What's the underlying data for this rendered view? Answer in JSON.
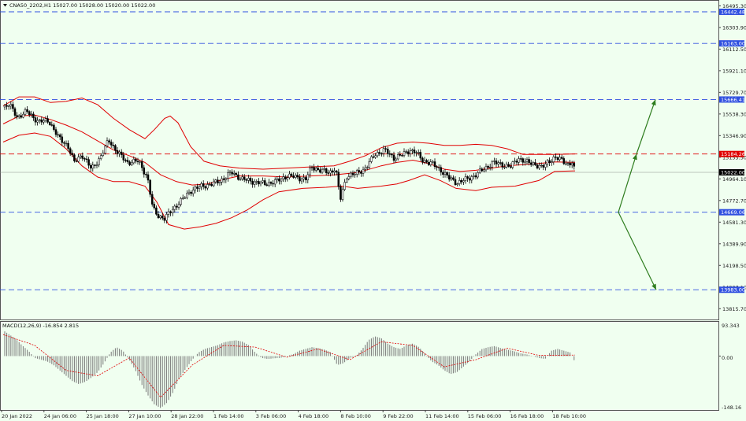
{
  "header": {
    "symbol_info": "CNA50_2202,H1  15027.00 15028.00 15020.00 15022.00"
  },
  "macd": {
    "label": "MACD(12,26,9) -16.854 2.815",
    "scale_labels": [
      "93.343",
      "0.00",
      "-148.16"
    ]
  },
  "colors": {
    "background": "#f0fff0",
    "candles": "#000000",
    "bollinger": "#e00000",
    "level_lines": "#3050e0",
    "arrows": "#2e7d1e",
    "current_price_tag": "#000000",
    "resistance_tag": "#e00000"
  },
  "chart_data": [
    {
      "type": "candlestick",
      "title": "",
      "ylim": [
        13720,
        16540
      ],
      "y_ticks": [
        "16495.30",
        "16303.90",
        "16112.50",
        "15921.10",
        "15729.70",
        "15538.30",
        "15346.90",
        "15155.50",
        "14964.10",
        "14772.70",
        "14581.30",
        "14389.90",
        "14198.50",
        "14007.10",
        "13815.70"
      ],
      "x_ticks": [
        "20 Jan 2022",
        "24 Jan 06:00",
        "25 Jan 18:00",
        "27 Jan 10:00",
        "28 Jan 22:00",
        "1 Feb 14:00",
        "3 Feb 06:00",
        "4 Feb 18:00",
        "8 Feb 10:00",
        "9 Feb 22:00",
        "11 Feb 14:00",
        "15 Feb 06:00",
        "16 Feb 18:00",
        "18 Feb 10:00"
      ],
      "indicators": [
        "Bollinger Bands"
      ],
      "close_path": [
        [
          0,
          15600
        ],
        [
          8,
          15620
        ],
        [
          18,
          15510
        ],
        [
          30,
          15560
        ],
        [
          45,
          15470
        ],
        [
          58,
          15480
        ],
        [
          70,
          15330
        ],
        [
          82,
          15260
        ],
        [
          90,
          15110
        ],
        [
          100,
          15180
        ],
        [
          112,
          15050
        ],
        [
          124,
          15160
        ],
        [
          134,
          15310
        ],
        [
          146,
          15190
        ],
        [
          158,
          15110
        ],
        [
          172,
          15120
        ],
        [
          183,
          14980
        ],
        [
          190,
          14700
        ],
        [
          197,
          14640
        ],
        [
          205,
          14610
        ],
        [
          214,
          14690
        ],
        [
          226,
          14770
        ],
        [
          238,
          14860
        ],
        [
          252,
          14900
        ],
        [
          266,
          14920
        ],
        [
          276,
          14950
        ],
        [
          290,
          15020
        ],
        [
          304,
          14960
        ],
        [
          318,
          14940
        ],
        [
          332,
          14920
        ],
        [
          346,
          14940
        ],
        [
          360,
          14990
        ],
        [
          372,
          14980
        ],
        [
          384,
          14960
        ],
        [
          392,
          15070
        ],
        [
          402,
          15040
        ],
        [
          414,
          15020
        ],
        [
          422,
          15060
        ],
        [
          428,
          14780
        ],
        [
          436,
          14990
        ],
        [
          448,
          15010
        ],
        [
          460,
          15060
        ],
        [
          472,
          15180
        ],
        [
          484,
          15220
        ],
        [
          496,
          15150
        ],
        [
          508,
          15180
        ],
        [
          516,
          15220
        ],
        [
          524,
          15200
        ],
        [
          532,
          15130
        ],
        [
          544,
          15100
        ],
        [
          556,
          15040
        ],
        [
          566,
          14970
        ],
        [
          576,
          14930
        ],
        [
          588,
          14960
        ],
        [
          600,
          15000
        ],
        [
          612,
          15060
        ],
        [
          622,
          15110
        ],
        [
          634,
          15090
        ],
        [
          644,
          15070
        ],
        [
          654,
          15150
        ],
        [
          664,
          15110
        ],
        [
          674,
          15100
        ],
        [
          684,
          15060
        ],
        [
          692,
          15120
        ],
        [
          700,
          15150
        ],
        [
          710,
          15130
        ],
        [
          718,
          15090
        ],
        [
          722,
          15110
        ],
        [
          726,
          15022
        ]
      ],
      "bollinger_upper": [
        [
          0,
          15610
        ],
        [
          20,
          15690
        ],
        [
          40,
          15690
        ],
        [
          60,
          15640
        ],
        [
          80,
          15650
        ],
        [
          100,
          15680
        ],
        [
          120,
          15620
        ],
        [
          140,
          15500
        ],
        [
          160,
          15400
        ],
        [
          180,
          15320
        ],
        [
          192,
          15400
        ],
        [
          205,
          15500
        ],
        [
          212,
          15520
        ],
        [
          222,
          15460
        ],
        [
          238,
          15250
        ],
        [
          255,
          15120
        ],
        [
          275,
          15080
        ],
        [
          300,
          15060
        ],
        [
          330,
          15050
        ],
        [
          360,
          15060
        ],
        [
          390,
          15070
        ],
        [
          420,
          15080
        ],
        [
          440,
          15120
        ],
        [
          460,
          15170
        ],
        [
          480,
          15240
        ],
        [
          500,
          15280
        ],
        [
          520,
          15290
        ],
        [
          540,
          15280
        ],
        [
          560,
          15260
        ],
        [
          580,
          15260
        ],
        [
          600,
          15270
        ],
        [
          620,
          15260
        ],
        [
          640,
          15230
        ],
        [
          660,
          15180
        ],
        [
          680,
          15180
        ],
        [
          700,
          15180
        ],
        [
          726,
          15185
        ]
      ],
      "bollinger_middle": [
        [
          0,
          15450
        ],
        [
          20,
          15520
        ],
        [
          40,
          15530
        ],
        [
          60,
          15490
        ],
        [
          80,
          15440
        ],
        [
          100,
          15380
        ],
        [
          120,
          15300
        ],
        [
          140,
          15220
        ],
        [
          160,
          15170
        ],
        [
          180,
          15110
        ],
        [
          200,
          15000
        ],
        [
          220,
          14940
        ],
        [
          240,
          14910
        ],
        [
          260,
          14920
        ],
        [
          280,
          14960
        ],
        [
          300,
          14990
        ],
        [
          330,
          14990
        ],
        [
          360,
          14980
        ],
        [
          390,
          14990
        ],
        [
          420,
          15000
        ],
        [
          450,
          15020
        ],
        [
          480,
          15080
        ],
        [
          500,
          15110
        ],
        [
          520,
          15130
        ],
        [
          540,
          15100
        ],
        [
          560,
          15050
        ],
        [
          580,
          15030
        ],
        [
          600,
          15040
        ],
        [
          620,
          15060
        ],
        [
          640,
          15080
        ],
        [
          660,
          15090
        ],
        [
          680,
          15100
        ],
        [
          700,
          15115
        ],
        [
          726,
          15110
        ]
      ],
      "bollinger_lower": [
        [
          0,
          15290
        ],
        [
          20,
          15350
        ],
        [
          40,
          15370
        ],
        [
          60,
          15340
        ],
        [
          80,
          15230
        ],
        [
          100,
          15080
        ],
        [
          120,
          14980
        ],
        [
          140,
          14940
        ],
        [
          160,
          14940
        ],
        [
          180,
          14900
        ],
        [
          195,
          14760
        ],
        [
          210,
          14560
        ],
        [
          230,
          14520
        ],
        [
          250,
          14540
        ],
        [
          270,
          14570
        ],
        [
          290,
          14620
        ],
        [
          310,
          14690
        ],
        [
          330,
          14780
        ],
        [
          350,
          14850
        ],
        [
          380,
          14880
        ],
        [
          410,
          14890
        ],
        [
          430,
          14900
        ],
        [
          450,
          14880
        ],
        [
          480,
          14900
        ],
        [
          500,
          14920
        ],
        [
          515,
          14950
        ],
        [
          535,
          15000
        ],
        [
          555,
          14950
        ],
        [
          575,
          14880
        ],
        [
          600,
          14860
        ],
        [
          620,
          14890
        ],
        [
          650,
          14900
        ],
        [
          680,
          14950
        ],
        [
          700,
          15030
        ],
        [
          726,
          15035
        ]
      ],
      "horizontal_levels": [
        {
          "value": 16442.48,
          "label": "16442.48",
          "color": "#3050e0",
          "style": "dashed"
        },
        {
          "value": 16163.0,
          "label": "16163.00",
          "color": "#3050e0",
          "style": "dashed"
        },
        {
          "value": 15666.41,
          "label": "15666.41",
          "color": "#3050e0",
          "style": "dashed"
        },
        {
          "value": 15184.26,
          "label": "15184.26",
          "color": "#e00000",
          "style": "dashed"
        },
        {
          "value": 15022.0,
          "label": "15022.00",
          "color": "#000000",
          "style": "solid-thin"
        },
        {
          "value": 14669.06,
          "label": "14669.06",
          "color": "#3050e0",
          "style": "dashed"
        },
        {
          "value": 13983.0,
          "label": "13983.00",
          "color": "#3050e0",
          "style": "dashed"
        }
      ],
      "scenario_arrows": [
        {
          "direction": "up",
          "points": [
            [
              785,
              14669
            ],
            [
              808,
              15184
            ],
            [
              832,
              15666
            ]
          ]
        },
        {
          "direction": "down",
          "points": [
            [
              785,
              14669
            ],
            [
              833,
              13983
            ]
          ]
        }
      ]
    },
    {
      "type": "macd_histogram",
      "title": "",
      "ylim": [
        -148.16,
        93.343
      ],
      "series_bars": [
        [
          0,
          72
        ],
        [
          8,
          60
        ],
        [
          16,
          48
        ],
        [
          24,
          30
        ],
        [
          32,
          15
        ],
        [
          40,
          -5
        ],
        [
          48,
          -10
        ],
        [
          56,
          -15
        ],
        [
          64,
          -25
        ],
        [
          72,
          -40
        ],
        [
          80,
          -55
        ],
        [
          88,
          -70
        ],
        [
          96,
          -78
        ],
        [
          104,
          -72
        ],
        [
          112,
          -60
        ],
        [
          120,
          -45
        ],
        [
          128,
          -20
        ],
        [
          136,
          10
        ],
        [
          144,
          25
        ],
        [
          152,
          15
        ],
        [
          160,
          -10
        ],
        [
          168,
          -40
        ],
        [
          176,
          -80
        ],
        [
          184,
          -110
        ],
        [
          192,
          -135
        ],
        [
          200,
          -145
        ],
        [
          208,
          -130
        ],
        [
          216,
          -100
        ],
        [
          224,
          -60
        ],
        [
          232,
          -35
        ],
        [
          240,
          -10
        ],
        [
          248,
          10
        ],
        [
          256,
          20
        ],
        [
          264,
          25
        ],
        [
          272,
          30
        ],
        [
          280,
          38
        ],
        [
          288,
          42
        ],
        [
          296,
          44
        ],
        [
          304,
          40
        ],
        [
          312,
          30
        ],
        [
          320,
          10
        ],
        [
          328,
          -5
        ],
        [
          336,
          -8
        ],
        [
          344,
          -6
        ],
        [
          352,
          -5
        ],
        [
          360,
          0
        ],
        [
          368,
          5
        ],
        [
          376,
          15
        ],
        [
          384,
          20
        ],
        [
          392,
          25
        ],
        [
          400,
          22
        ],
        [
          408,
          18
        ],
        [
          416,
          10
        ],
        [
          424,
          -25
        ],
        [
          432,
          -20
        ],
        [
          440,
          -5
        ],
        [
          448,
          0
        ],
        [
          456,
          20
        ],
        [
          464,
          45
        ],
        [
          472,
          55
        ],
        [
          480,
          50
        ],
        [
          488,
          35
        ],
        [
          496,
          25
        ],
        [
          504,
          20
        ],
        [
          512,
          30
        ],
        [
          520,
          35
        ],
        [
          528,
          25
        ],
        [
          536,
          5
        ],
        [
          544,
          -15
        ],
        [
          552,
          -25
        ],
        [
          560,
          -40
        ],
        [
          568,
          -50
        ],
        [
          576,
          -45
        ],
        [
          584,
          -30
        ],
        [
          592,
          -15
        ],
        [
          600,
          5
        ],
        [
          608,
          20
        ],
        [
          616,
          25
        ],
        [
          624,
          28
        ],
        [
          632,
          22
        ],
        [
          640,
          18
        ],
        [
          648,
          14
        ],
        [
          656,
          8
        ],
        [
          664,
          5
        ],
        [
          672,
          0
        ],
        [
          680,
          -5
        ],
        [
          688,
          -8
        ],
        [
          696,
          15
        ],
        [
          704,
          20
        ],
        [
          712,
          15
        ],
        [
          720,
          10
        ],
        [
          726,
          -16.854
        ]
      ],
      "signal_line": [
        [
          0,
          60
        ],
        [
          40,
          30
        ],
        [
          80,
          -40
        ],
        [
          120,
          -55
        ],
        [
          160,
          -5
        ],
        [
          200,
          -115
        ],
        [
          240,
          -25
        ],
        [
          280,
          30
        ],
        [
          320,
          25
        ],
        [
          360,
          -3
        ],
        [
          400,
          20
        ],
        [
          440,
          -10
        ],
        [
          480,
          40
        ],
        [
          520,
          30
        ],
        [
          560,
          -30
        ],
        [
          600,
          -10
        ],
        [
          640,
          22
        ],
        [
          680,
          2
        ],
        [
          726,
          2.815
        ]
      ]
    }
  ]
}
